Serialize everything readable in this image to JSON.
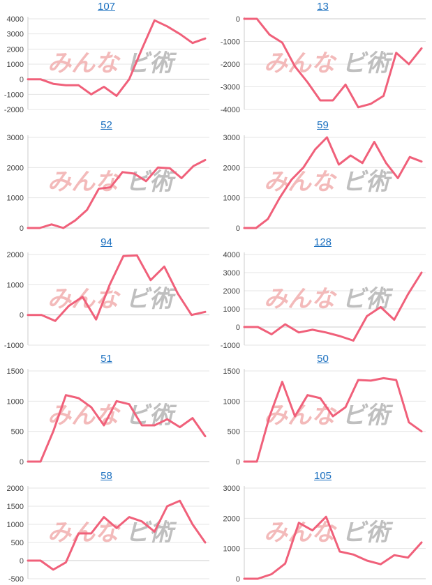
{
  "theme": {
    "line_color": "#f0607a",
    "grid_color": "#e4e4e4",
    "axis_color": "#cccccc",
    "title_color": "#1a6fbf",
    "watermark_color_left": "#f2b3b3",
    "watermark_color_right": "#b9b9b9"
  },
  "watermark": {
    "left_text": "みんな",
    "right_text": "ビ術"
  },
  "chart_data": [
    {
      "type": "line",
      "title": "107",
      "yticks": [
        4000,
        3000,
        2000,
        1000,
        0,
        -1000,
        -2000
      ],
      "ylim": [
        -2000,
        4000
      ],
      "series": [
        {
          "values": [
            0,
            0,
            -300,
            -400,
            -400,
            -1000,
            -500,
            -1100,
            0,
            2000,
            3900,
            3500,
            3000,
            2400,
            2700
          ]
        }
      ]
    },
    {
      "type": "line",
      "title": "13",
      "yticks": [
        0,
        -1000,
        -2000,
        -3000,
        -4000
      ],
      "ylim": [
        -4000,
        0
      ],
      "series": [
        {
          "values": [
            0,
            0,
            -700,
            -1050,
            -2100,
            -2800,
            -3600,
            -3600,
            -2900,
            -3900,
            -3750,
            -3400,
            -1500,
            -2000,
            -1300
          ]
        }
      ]
    },
    {
      "type": "line",
      "title": "52",
      "yticks": [
        3000,
        2000,
        1000,
        0
      ],
      "ylim": [
        0,
        3000
      ],
      "series": [
        {
          "values": [
            0,
            0,
            120,
            0,
            250,
            600,
            1300,
            1350,
            1850,
            1800,
            1550,
            2000,
            1980,
            1650,
            2050,
            2250
          ]
        }
      ]
    },
    {
      "type": "line",
      "title": "59",
      "yticks": [
        3000,
        2000,
        1000,
        0
      ],
      "ylim": [
        0,
        3000
      ],
      "series": [
        {
          "values": [
            0,
            0,
            300,
            1000,
            1600,
            2000,
            2600,
            3000,
            2100,
            2400,
            2150,
            2850,
            2150,
            1650,
            2350,
            2200
          ]
        }
      ]
    },
    {
      "type": "line",
      "title": "94",
      "yticks": [
        2000,
        1000,
        0,
        -1000
      ],
      "ylim": [
        -1000,
        2000
      ],
      "series": [
        {
          "values": [
            0,
            0,
            -200,
            300,
            600,
            -150,
            1000,
            1950,
            1970,
            1150,
            1600,
            700,
            0,
            100
          ]
        }
      ]
    },
    {
      "type": "line",
      "title": "128",
      "yticks": [
        4000,
        3000,
        2000,
        1000,
        0,
        -1000
      ],
      "ylim": [
        -1000,
        4000
      ],
      "series": [
        {
          "values": [
            0,
            0,
            -400,
            150,
            -300,
            -150,
            -300,
            -500,
            -750,
            600,
            1100,
            400,
            1800,
            3000
          ]
        }
      ]
    },
    {
      "type": "line",
      "title": "51",
      "yticks": [
        1500,
        1000,
        500,
        0
      ],
      "ylim": [
        0,
        1500
      ],
      "series": [
        {
          "values": [
            0,
            0,
            500,
            1100,
            1050,
            900,
            600,
            1000,
            950,
            600,
            600,
            700,
            570,
            720,
            420
          ]
        }
      ]
    },
    {
      "type": "line",
      "title": "50",
      "yticks": [
        1500,
        1000,
        500,
        0
      ],
      "ylim": [
        0,
        1500
      ],
      "series": [
        {
          "values": [
            0,
            0,
            750,
            1320,
            750,
            1100,
            1050,
            750,
            900,
            1350,
            1340,
            1380,
            1350,
            650,
            500
          ]
        }
      ]
    },
    {
      "type": "line",
      "title": "58",
      "yticks": [
        2000,
        1500,
        1000,
        500,
        0,
        -500
      ],
      "ylim": [
        -500,
        2000
      ],
      "series": [
        {
          "values": [
            0,
            0,
            -250,
            -50,
            750,
            750,
            1200,
            900,
            1200,
            1080,
            800,
            1500,
            1650,
            1000,
            500
          ]
        }
      ]
    },
    {
      "type": "line",
      "title": "105",
      "yticks": [
        3000,
        2000,
        1000,
        0
      ],
      "ylim": [
        0,
        3000
      ],
      "series": [
        {
          "values": [
            0,
            0,
            150,
            500,
            1850,
            1600,
            2050,
            900,
            800,
            600,
            480,
            780,
            700,
            1200
          ]
        }
      ]
    }
  ]
}
